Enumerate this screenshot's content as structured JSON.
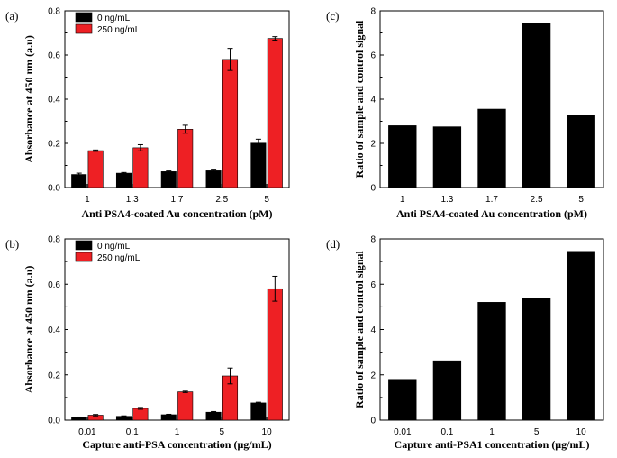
{
  "chart_data": [
    {
      "panel": "(a)",
      "type": "bar",
      "xlabel": "Anti PSA4-coated Au concentration (pM)",
      "ylabel": "Absorbance at 450 nm (a.u)",
      "categories": [
        "1",
        "1.3",
        "1.7",
        "2.5",
        "5"
      ],
      "ylim": [
        0,
        0.8
      ],
      "yticks": [
        "0.0",
        "0.2",
        "0.4",
        "0.6",
        "0.8"
      ],
      "series": [
        {
          "name": "0 ng/mL",
          "color": "#000000",
          "values": [
            0.059,
            0.065,
            0.072,
            0.076,
            0.201
          ],
          "errors": [
            0.006,
            0.003,
            0.003,
            0.003,
            0.018
          ]
        },
        {
          "name": "250 ng/mL",
          "color": "#ee2024",
          "values": [
            0.167,
            0.18,
            0.264,
            0.58,
            0.675
          ],
          "errors": [
            0.003,
            0.014,
            0.018,
            0.05,
            0.008
          ]
        }
      ],
      "legend": "top-left"
    },
    {
      "panel": "(c)",
      "type": "bar",
      "xlabel": "Anti PSA4-coated Au concentration (pM)",
      "ylabel": "Ratio of sample and control signal",
      "categories": [
        "1",
        "1.3",
        "1.7",
        "2.5",
        "5"
      ],
      "ylim": [
        0,
        8
      ],
      "yticks": [
        "0",
        "2",
        "4",
        "6",
        "8"
      ],
      "series": [
        {
          "name": "ratio",
          "color": "#000000",
          "values": [
            2.8,
            2.75,
            3.55,
            7.45,
            3.28
          ]
        }
      ]
    },
    {
      "panel": "(b)",
      "type": "bar",
      "xlabel": "Capture anti-PSA concentration (μg/mL)",
      "ylabel": "Absorbance at 450 nm (a.u)",
      "categories": [
        "0.01",
        "0.1",
        "1",
        "5",
        "10"
      ],
      "ylim": [
        0,
        0.8
      ],
      "yticks": [
        "0.0",
        "0.2",
        "0.4",
        "0.6",
        "0.8"
      ],
      "series": [
        {
          "name": "0 ng/mL",
          "color": "#000000",
          "values": [
            0.012,
            0.017,
            0.024,
            0.035,
            0.076
          ],
          "errors": [
            0.002,
            0.002,
            0.002,
            0.003,
            0.003
          ]
        },
        {
          "name": "250 ng/mL",
          "color": "#ee2024",
          "values": [
            0.022,
            0.052,
            0.125,
            0.195,
            0.58
          ],
          "errors": [
            0.003,
            0.004,
            0.003,
            0.035,
            0.055
          ]
        }
      ],
      "legend": "top-left"
    },
    {
      "panel": "(d)",
      "type": "bar",
      "xlabel": "Capture anti-PSA1 concentration (μg/mL)",
      "ylabel": "Ratio of sample and control signal",
      "categories": [
        "0.01",
        "0.1",
        "1",
        "5",
        "10"
      ],
      "ylim": [
        0,
        8
      ],
      "yticks": [
        "0",
        "2",
        "4",
        "6",
        "8"
      ],
      "series": [
        {
          "name": "ratio",
          "color": "#000000",
          "values": [
            1.8,
            2.62,
            5.2,
            5.38,
            7.45
          ]
        }
      ]
    }
  ]
}
